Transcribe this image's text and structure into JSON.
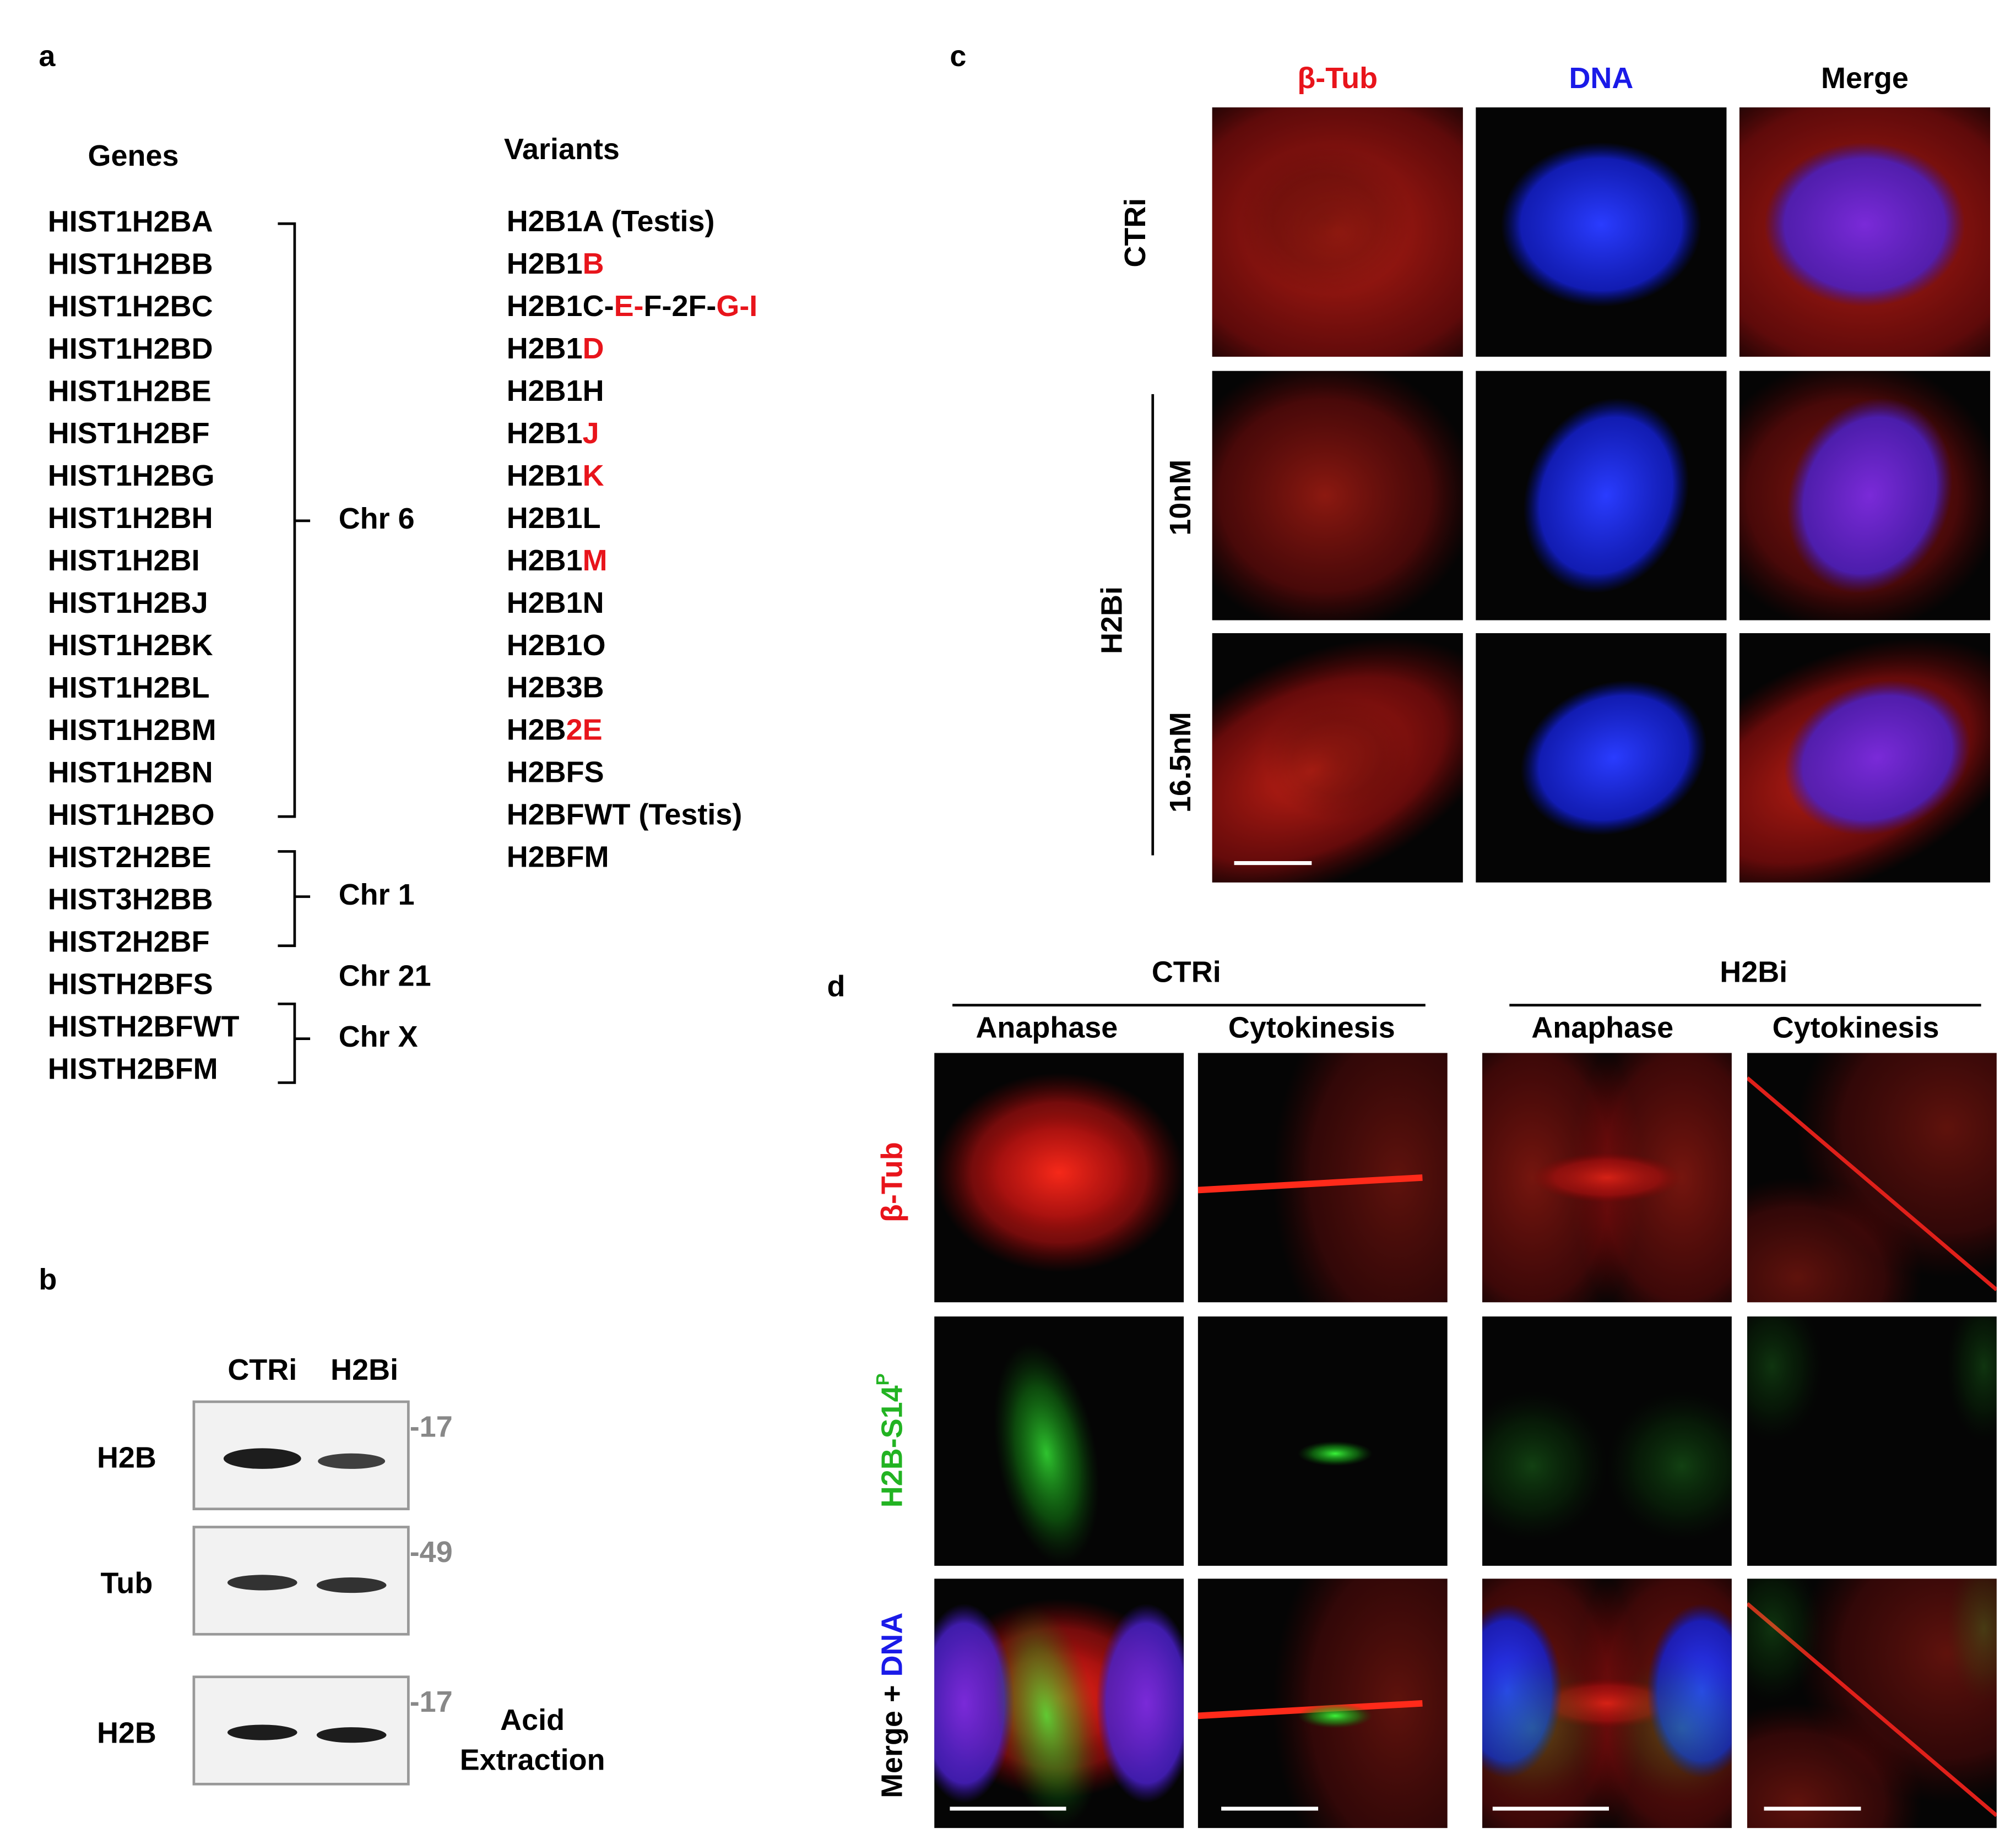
{
  "panel_a": {
    "label": "a",
    "genes_header": "Genes",
    "variants_header": "Variants",
    "genes": [
      "HIST1H2BA",
      "HIST1H2BB",
      "HIST1H2BC",
      "HIST1H2BD",
      "HIST1H2BE",
      "HIST1H2BF",
      "HIST1H2BG",
      "HIST1H2BH",
      "HIST1H2BI",
      "HIST1H2BJ",
      "HIST1H2BK",
      "HIST1H2BL",
      "HIST1H2BM",
      "HIST1H2BN",
      "HIST1H2BO",
      "HIST2H2BE",
      "HIST3H2BB",
      "HIST2H2BF",
      "HISTH2BFS",
      "HISTH2BFWT",
      "HISTH2BFM"
    ],
    "chromosomes": [
      "Chr 6",
      "Chr 1",
      "Chr 21",
      "Chr X"
    ],
    "variants": [
      [
        {
          "text": "H2B1A (Testis)"
        }
      ],
      [
        {
          "text": "H2B1"
        },
        {
          "text": "B",
          "color": "#e8141b"
        }
      ],
      [
        {
          "text": "H2B1C-"
        },
        {
          "text": "E-",
          "color": "#e8141b"
        },
        {
          "text": "F-2F-"
        },
        {
          "text": "G-I",
          "color": "#e8141b"
        }
      ],
      [
        {
          "text": "H2B1"
        },
        {
          "text": "D",
          "color": "#e8141b"
        }
      ],
      [
        {
          "text": "H2B1H"
        }
      ],
      [
        {
          "text": "H2B1"
        },
        {
          "text": "J",
          "color": "#e8141b"
        }
      ],
      [
        {
          "text": "H2B1"
        },
        {
          "text": "K",
          "color": "#e8141b"
        }
      ],
      [
        {
          "text": "H2B1L"
        }
      ],
      [
        {
          "text": "H2B1"
        },
        {
          "text": "M",
          "color": "#e8141b"
        }
      ],
      [
        {
          "text": "H2B1N"
        }
      ],
      [
        {
          "text": "H2B1O"
        }
      ],
      [
        {
          "text": "H2B3B"
        }
      ],
      [
        {
          "text": "H2B"
        },
        {
          "text": "2E",
          "color": "#e8141b"
        }
      ],
      [
        {
          "text": "H2BFS"
        }
      ],
      [
        {
          "text": "H2BFWT (Testis)"
        }
      ],
      [
        {
          "text": "H2BFM"
        }
      ]
    ]
  },
  "panel_b": {
    "label": "b",
    "lanes": [
      "CTRi",
      "H2Bi"
    ],
    "rows": [
      "H2B",
      "Tub",
      "H2B"
    ],
    "markers": [
      "-17",
      "-49",
      "-17"
    ],
    "note": [
      "Acid",
      "Extraction"
    ]
  },
  "panel_c": {
    "label": "c",
    "columns": [
      {
        "text": "β-Tub",
        "color": "#e8141b"
      },
      {
        "text": "DNA",
        "color": "#1a1ae8"
      },
      {
        "text": "Merge",
        "color": "#000000"
      }
    ],
    "control": "CTRi",
    "treatment": "H2Bi",
    "doses": [
      "10nM",
      "16.5nM"
    ]
  },
  "panel_d": {
    "label": "d",
    "groups": [
      "CTRi",
      "H2Bi"
    ],
    "phases": [
      "Anaphase",
      "Cytokinesis",
      "Anaphase",
      "Cytokinesis"
    ],
    "rows": [
      [
        {
          "text": "β-Tub",
          "color": "#e8141b"
        }
      ],
      [
        {
          "text": "H2B-S14",
          "color": "#22b322"
        },
        {
          "text": "P",
          "color": "#22b322",
          "sup": true
        }
      ],
      [
        {
          "text": "Merge + ",
          "color": "#000000"
        },
        {
          "text": "DNA",
          "color": "#1a1ae8"
        }
      ]
    ]
  }
}
